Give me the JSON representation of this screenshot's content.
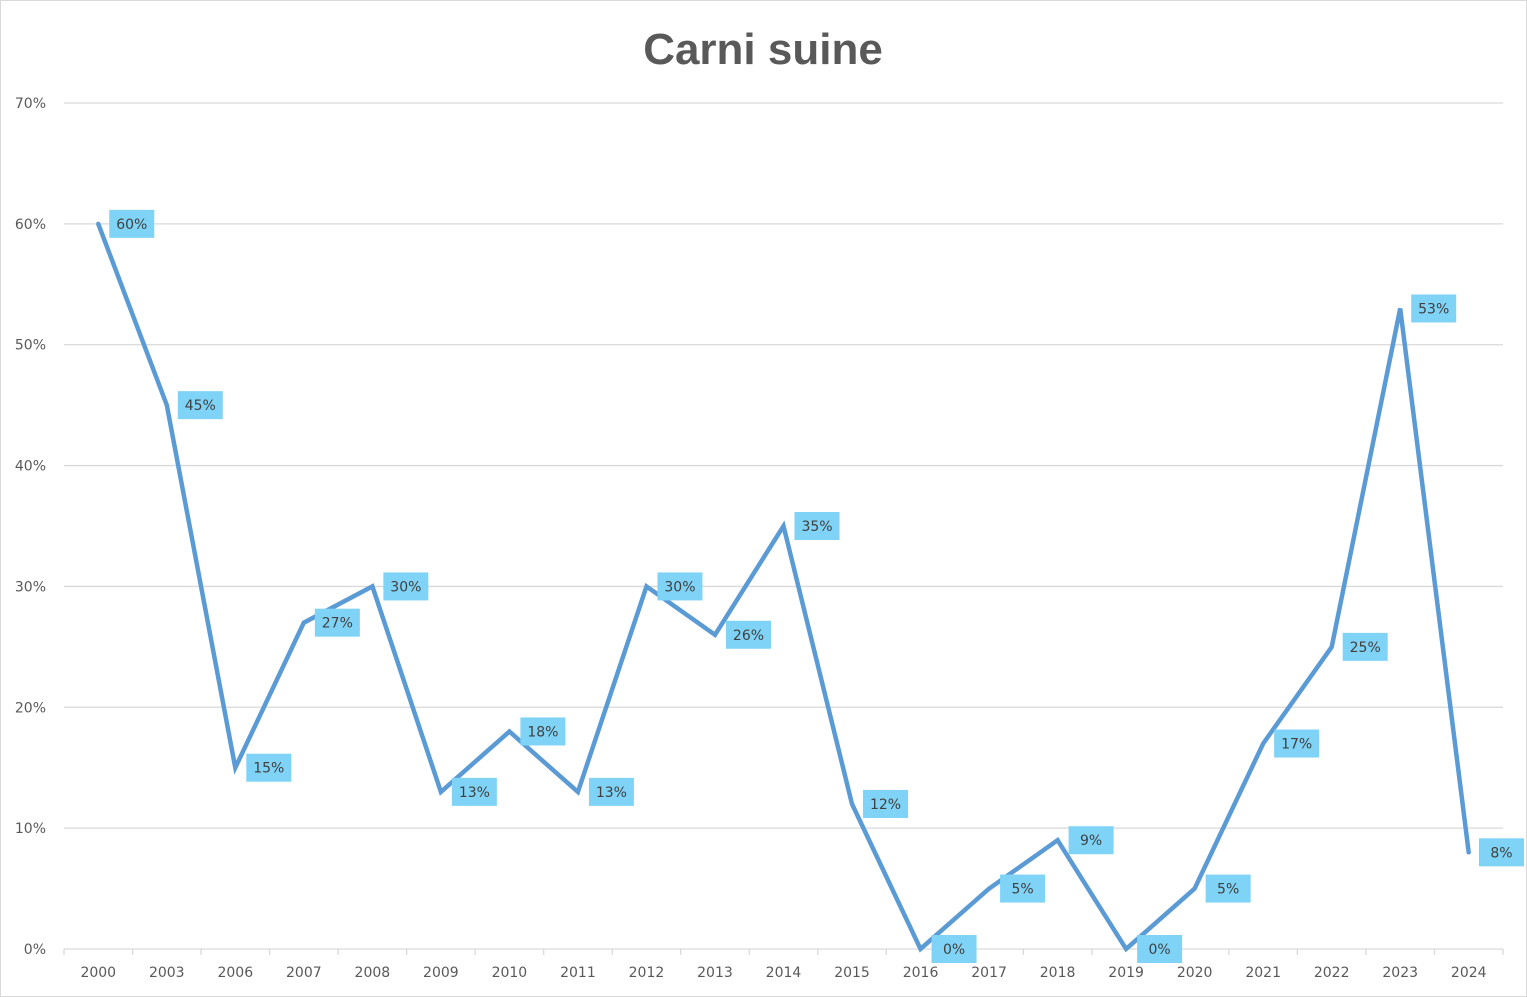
{
  "chart_data": {
    "type": "line",
    "title": "Carni suine",
    "xlabel": "",
    "ylabel": "",
    "categories": [
      "2000",
      "2003",
      "2006",
      "2007",
      "2008",
      "2009",
      "2010",
      "2011",
      "2012",
      "2013",
      "2014",
      "2015",
      "2016",
      "2017",
      "2018",
      "2019",
      "2020",
      "2021",
      "2022",
      "2023",
      "2024"
    ],
    "series": [
      {
        "values": [
          60,
          45,
          15,
          27,
          30,
          13,
          18,
          13,
          30,
          26,
          35,
          12,
          0,
          5,
          9,
          0,
          5,
          17,
          25,
          53,
          8
        ],
        "labels": [
          "60%",
          "45%",
          "15%",
          "27%",
          "30%",
          "13%",
          "18%",
          "13%",
          "30%",
          "26%",
          "35%",
          "12%",
          "0%",
          "5%",
          "9%",
          "0%",
          "5%",
          "17%",
          "25%",
          "53%",
          "8%"
        ],
        "color": "#5b9bd5"
      }
    ],
    "ylim": [
      0,
      70
    ],
    "yticks": [
      0,
      10,
      20,
      30,
      40,
      50,
      60,
      70
    ],
    "ytick_labels": [
      "0%",
      "10%",
      "20%",
      "30%",
      "40%",
      "50%",
      "60%",
      "70%"
    ],
    "grid": true,
    "legend": "none",
    "label_bg_color": "#7fd3f7",
    "grid_color": "#d9d9d9"
  }
}
